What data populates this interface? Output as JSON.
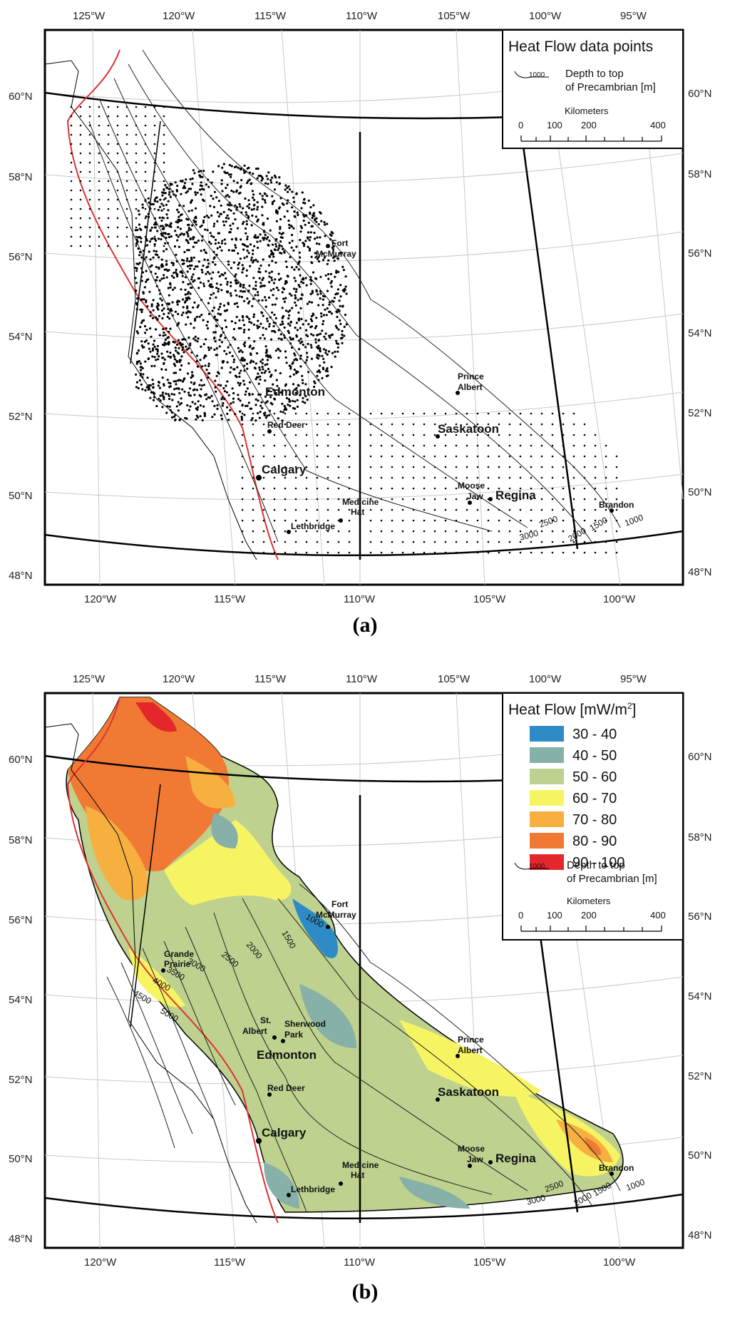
{
  "panel_a": {
    "caption": "(a)",
    "legend": {
      "title": "Heat Flow data points",
      "contour_sample": "1000",
      "contour_label_1": "Depth to top",
      "contour_label_2": "of Precambrian [m]",
      "scale_title": "Kilometers",
      "scale_ticks": [
        "0",
        "100",
        "200",
        "400"
      ]
    },
    "cities": [
      {
        "name": "Fort",
        "name2": "McMurray"
      },
      {
        "name": "Prince",
        "name2": "Albert"
      },
      {
        "name": "Saskatoon"
      },
      {
        "name": "Edmonton"
      },
      {
        "name": "Red Deer"
      },
      {
        "name": "Calgary"
      },
      {
        "name": "Medicine",
        "name2": "Hat"
      },
      {
        "name": "Lethbridge"
      },
      {
        "name": "Moose",
        "name2": "Jaw"
      },
      {
        "name": "Regina"
      },
      {
        "name": "Brandon"
      }
    ],
    "contours": [
      "1000",
      "1500",
      "2000",
      "2500",
      "3000"
    ]
  },
  "panel_b": {
    "caption": "(b)",
    "legend": {
      "title": "Heat Flow [mW/m",
      "title_sup": "2",
      "title_end": "]",
      "classes": [
        {
          "label": "30 - 40",
          "color": "#2e8bc6"
        },
        {
          "label": "40 - 50",
          "color": "#86b0a8"
        },
        {
          "label": "50 - 60",
          "color": "#bed18f"
        },
        {
          "label": "60 - 70",
          "color": "#f7f464"
        },
        {
          "label": "70 - 80",
          "color": "#f7b040"
        },
        {
          "label": "80 - 90",
          "color": "#f07a33"
        },
        {
          "label": "90 - 100",
          "color": "#e4272b"
        }
      ],
      "contour_sample": "1000",
      "contour_label_1": "Depth to top",
      "contour_label_2": "of Precambrian [m]",
      "scale_title": "Kilometers",
      "scale_ticks": [
        "0",
        "100",
        "200",
        "400"
      ]
    },
    "cities": [
      {
        "name": "Fort",
        "name2": "McMurray"
      },
      {
        "name": "Grande",
        "name2": "Prairie"
      },
      {
        "name": "St.",
        "name2": "Albert"
      },
      {
        "name": "Sherwood",
        "name2": "Park"
      },
      {
        "name": "Edmonton"
      },
      {
        "name": "Prince",
        "name2": "Albert"
      },
      {
        "name": "Saskatoon"
      },
      {
        "name": "Red Deer"
      },
      {
        "name": "Calgary"
      },
      {
        "name": "Medicine",
        "name2": "Hat"
      },
      {
        "name": "Lethbridge"
      },
      {
        "name": "Moose",
        "name2": "Jaw"
      },
      {
        "name": "Regina"
      },
      {
        "name": "Brandon"
      }
    ],
    "contours": [
      "1000",
      "1500",
      "2000",
      "2500",
      "3000",
      "3500",
      "4000",
      "4500",
      "5000"
    ]
  },
  "axes": {
    "top_lon": [
      "125°W",
      "120°W",
      "115°W",
      "110°W",
      "105°W",
      "100°W",
      "95°W"
    ],
    "bottom_lon": [
      "120°W",
      "115°W",
      "110°W",
      "105°W",
      "100°W"
    ],
    "left_lat": [
      "60°N",
      "58°N",
      "56°N",
      "54°N",
      "52°N",
      "50°N",
      "48°N"
    ],
    "right_lat": [
      "60°N",
      "58°N",
      "56°N",
      "54°N",
      "52°N",
      "50°N",
      "48°N"
    ]
  }
}
